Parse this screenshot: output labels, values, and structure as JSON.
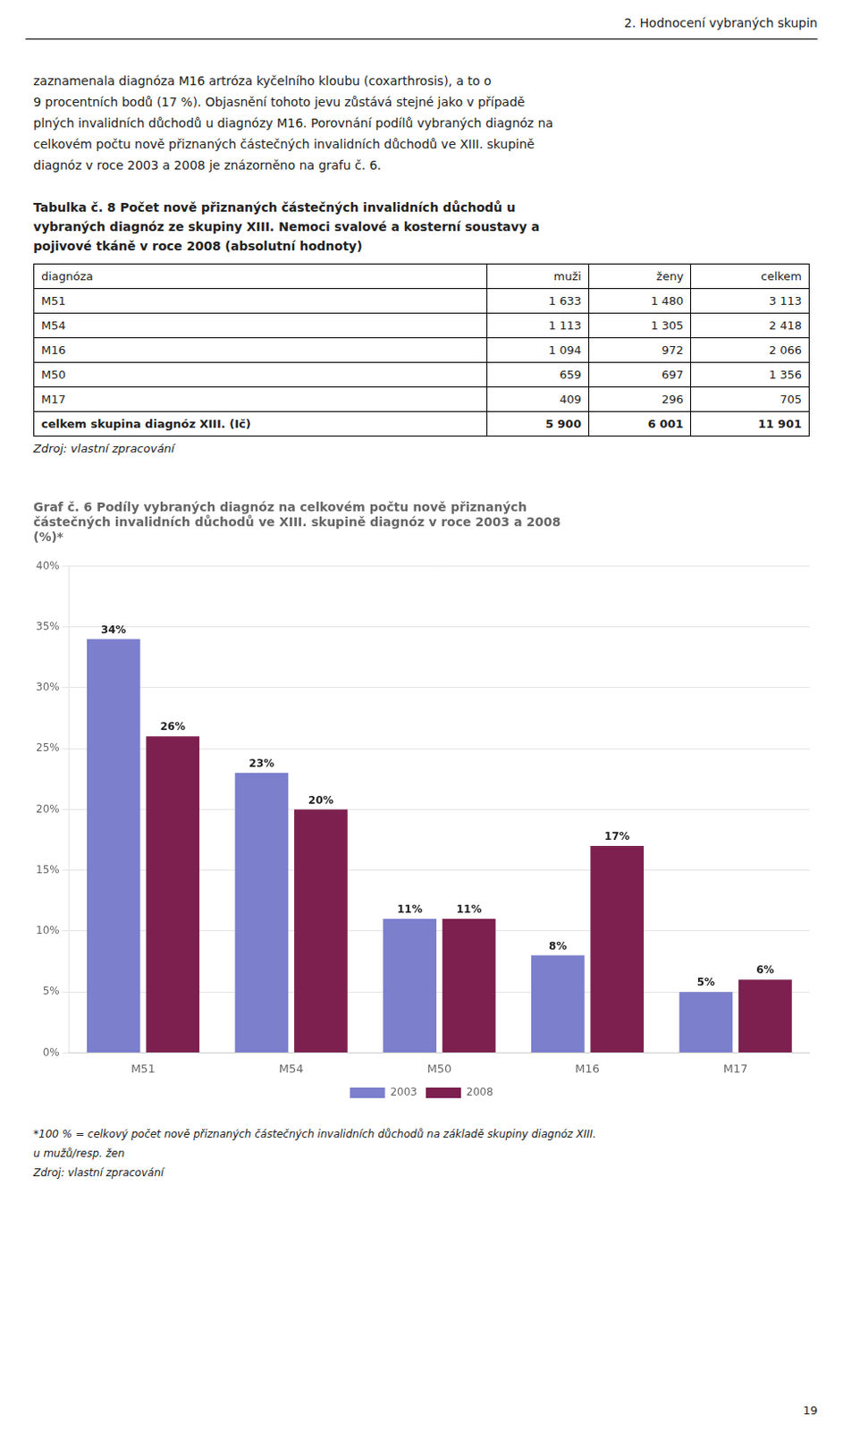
{
  "page_header": "2. Hodnocení vybraných skupin",
  "top_text": [
    "zaznamenala  diagnóza  M16  artróza  kyčelního  kloubu  (coxarthrosis),  a  to  o",
    "9 procentních bodů (17 %). Objasnění tohoto jevu zůstává stejné jako v případě",
    "plných invalidních důchodů u diagnózy M16. Porovnání podílů vybraných diagnóz na",
    "celkovém počtu nově přiznaných částečných invalidních důchodů ve XIII. skupině",
    "diagnóz v roce 2003 a 2008 je znázorněno na grafu č. 6."
  ],
  "table": {
    "title": [
      "Tabulka č. 8 Počet nově přiznaných částečných invalidních důchodů u",
      "vybraných diagnóz ze skupiny XIII. Nemoci svalové a kosterní soustavy a",
      "pojivové tkáně v roce 2008 (absolutní hodnoty)"
    ],
    "headers": [
      "diagnóza",
      "muži",
      "ženy",
      "celkem"
    ],
    "rows": [
      [
        "M51",
        "1 633",
        "1 480",
        "3 113"
      ],
      [
        "M54",
        "1 113",
        "1 305",
        "2 418"
      ],
      [
        "M16",
        "1 094",
        "972",
        "2 066"
      ],
      [
        "M50",
        "659",
        "697",
        "1 356"
      ],
      [
        "M17",
        "409",
        "296",
        "705"
      ],
      [
        "celkem skupina diagnóz XIII. (Ič)",
        "5 900",
        "6 001",
        "11 901"
      ]
    ],
    "source": "Zdroj: vlastní zpracování"
  },
  "chart_data": {
    "type": "bar",
    "title": [
      "Graf č. 6 Podíly vybraných diagnóz na celkovém počtu nově přiznaných",
      "částečných invalidních důchodů ve XIII. skupině diagnóz v roce 2003 a 2008",
      "(%)*"
    ],
    "categories": [
      "M51",
      "M54",
      "M50",
      "M16",
      "M17"
    ],
    "series": [
      {
        "name": "2003",
        "color": "#7b7fcc",
        "values": [
          34,
          23,
          11,
          8,
          5
        ],
        "value_labels": [
          "34%",
          "23%",
          "11%",
          "8%",
          "5%"
        ]
      },
      {
        "name": "2008",
        "color": "#7d2050",
        "values": [
          26,
          20,
          11,
          17,
          6
        ],
        "value_labels": [
          "26%",
          "20%",
          "11%",
          "17%",
          "6%"
        ]
      }
    ],
    "ylim": [
      0,
      40
    ],
    "yticks": [
      {
        "value": 0,
        "label": "0%"
      },
      {
        "value": 5,
        "label": "5%"
      },
      {
        "value": 10,
        "label": "10%"
      },
      {
        "value": 15,
        "label": "15%"
      },
      {
        "value": 20,
        "label": "20%"
      },
      {
        "value": 25,
        "label": "25%"
      },
      {
        "value": 30,
        "label": "30%"
      },
      {
        "value": 35,
        "label": "35%"
      },
      {
        "value": 40,
        "label": "40%"
      }
    ],
    "grid": true,
    "legend": "bottom",
    "data_labels": true
  },
  "footnotes": [
    "*100 % = celkový počet nově přiznaných částečných invalidních důchodů na základě skupiny diagnóz XIII.",
    "u mužů/resp. žen",
    "Zdroj: vlastní zpracování"
  ],
  "page_number": "19"
}
